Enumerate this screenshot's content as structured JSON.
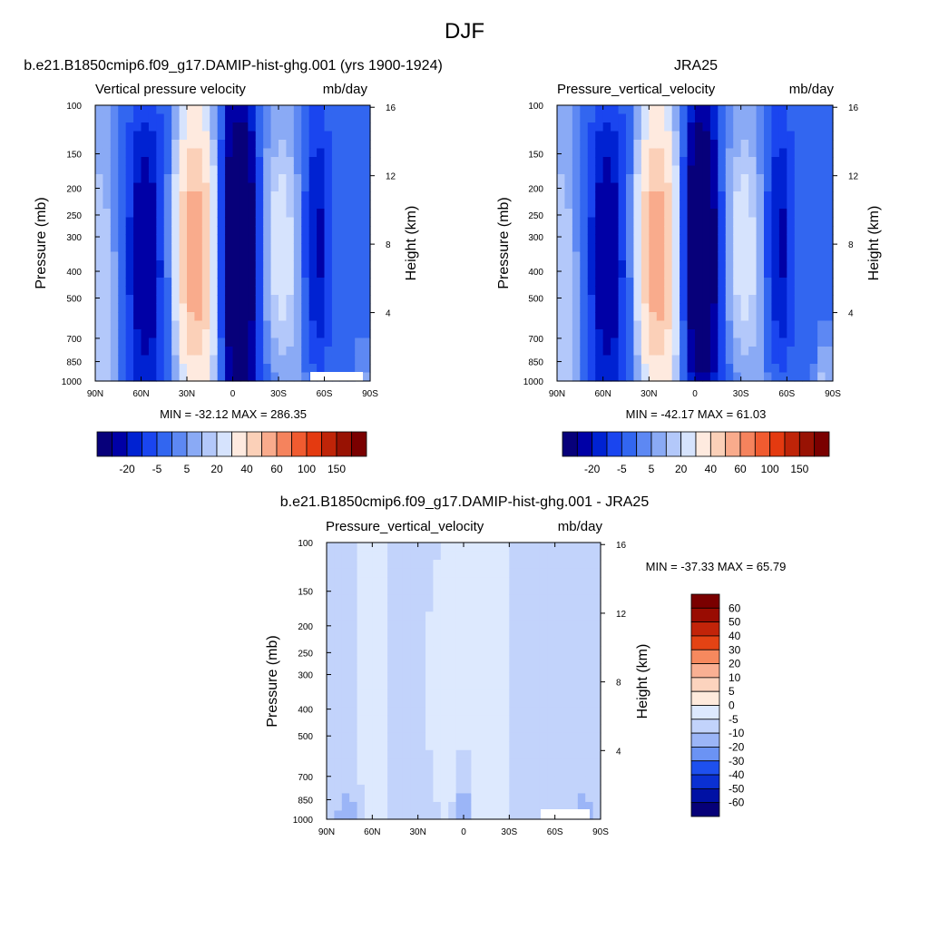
{
  "figure": {
    "suptitle": "DJF"
  },
  "colors": {
    "abs_levels": [
      "#07007a",
      "#0000a6",
      "#0022d2",
      "#1a45ef",
      "#3266f0",
      "#5d88f3",
      "#8aaaf5",
      "#b3c8fa",
      "#d6e3fd",
      "#feeadf",
      "#fbd0b8",
      "#f9ab8c",
      "#f5835d",
      "#f05b30",
      "#e43a10",
      "#bf2408",
      "#981203",
      "#7a0000"
    ],
    "diff_levels": [
      "#060078",
      "#0011a4",
      "#0a30d2",
      "#1e50ee",
      "#4272f2",
      "#6b93f4",
      "#9bb5f7",
      "#c2d3fb",
      "#dde9fe",
      "#feeadc",
      "#fcd3be",
      "#f9b093",
      "#f6895e",
      "#f2622a",
      "#e44314",
      "#c22409",
      "#990c02",
      "#7a0000"
    ]
  },
  "chart_data": [
    {
      "type": "heatmap",
      "title": "b.e21.B1850cmip6.f09_g17.DAMIP-hist-ghg.001 (yrs 1900-1924)",
      "left_label": "Vertical pressure velocity",
      "right_label": "mb/day",
      "xlabel": "",
      "ylabel": "Pressure (mb)",
      "y2label": "Height (km)",
      "x_ticks": [
        "90N",
        "60N",
        "30N",
        "0",
        "30S",
        "60S",
        "90S"
      ],
      "y_ticks": [
        "100",
        "150",
        "200",
        "250",
        "300",
        "400",
        "500",
        "700",
        "850",
        "1000"
      ],
      "y2_ticks": [
        "16",
        "12",
        "8",
        "4"
      ],
      "stats": "MIN = -32.12  MAX = 286.35",
      "colorbar_labels": [
        "-20",
        "-5",
        "5",
        "20",
        "40",
        "60",
        "100",
        "150"
      ]
    },
    {
      "type": "heatmap",
      "title": "JRA25",
      "left_label": "Pressure_vertical_velocity",
      "right_label": "mb/day",
      "xlabel": "",
      "ylabel": "Pressure (mb)",
      "y2label": "Height (km)",
      "x_ticks": [
        "90N",
        "60N",
        "30N",
        "0",
        "30S",
        "60S",
        "90S"
      ],
      "y_ticks": [
        "100",
        "150",
        "200",
        "250",
        "300",
        "400",
        "500",
        "700",
        "850",
        "1000"
      ],
      "y2_ticks": [
        "16",
        "12",
        "8",
        "4"
      ],
      "stats": "MIN = -42.17  MAX =  61.03",
      "colorbar_labels": [
        "-20",
        "-5",
        "5",
        "20",
        "40",
        "60",
        "100",
        "150"
      ]
    },
    {
      "type": "heatmap",
      "title": "b.e21.B1850cmip6.f09_g17.DAMIP-hist-ghg.001 - JRA25",
      "left_label": "Pressure_vertical_velocity",
      "right_label": "mb/day",
      "xlabel": "",
      "ylabel": "Pressure (mb)",
      "y2label": "Height (km)",
      "x_ticks": [
        "90N",
        "60N",
        "30N",
        "0",
        "30S",
        "60S",
        "90S"
      ],
      "y_ticks": [
        "100",
        "150",
        "200",
        "250",
        "300",
        "400",
        "500",
        "700",
        "850",
        "1000"
      ],
      "y2_ticks": [
        "16",
        "12",
        "8",
        "4"
      ],
      "stats": "MIN = -37.33  MAX =  65.79",
      "colorbar_labels": [
        "60",
        "50",
        "40",
        "30",
        "20",
        "10",
        "5",
        "0",
        "-5",
        "-10",
        "-20",
        "-30",
        "-40",
        "-50",
        "-60"
      ]
    }
  ]
}
